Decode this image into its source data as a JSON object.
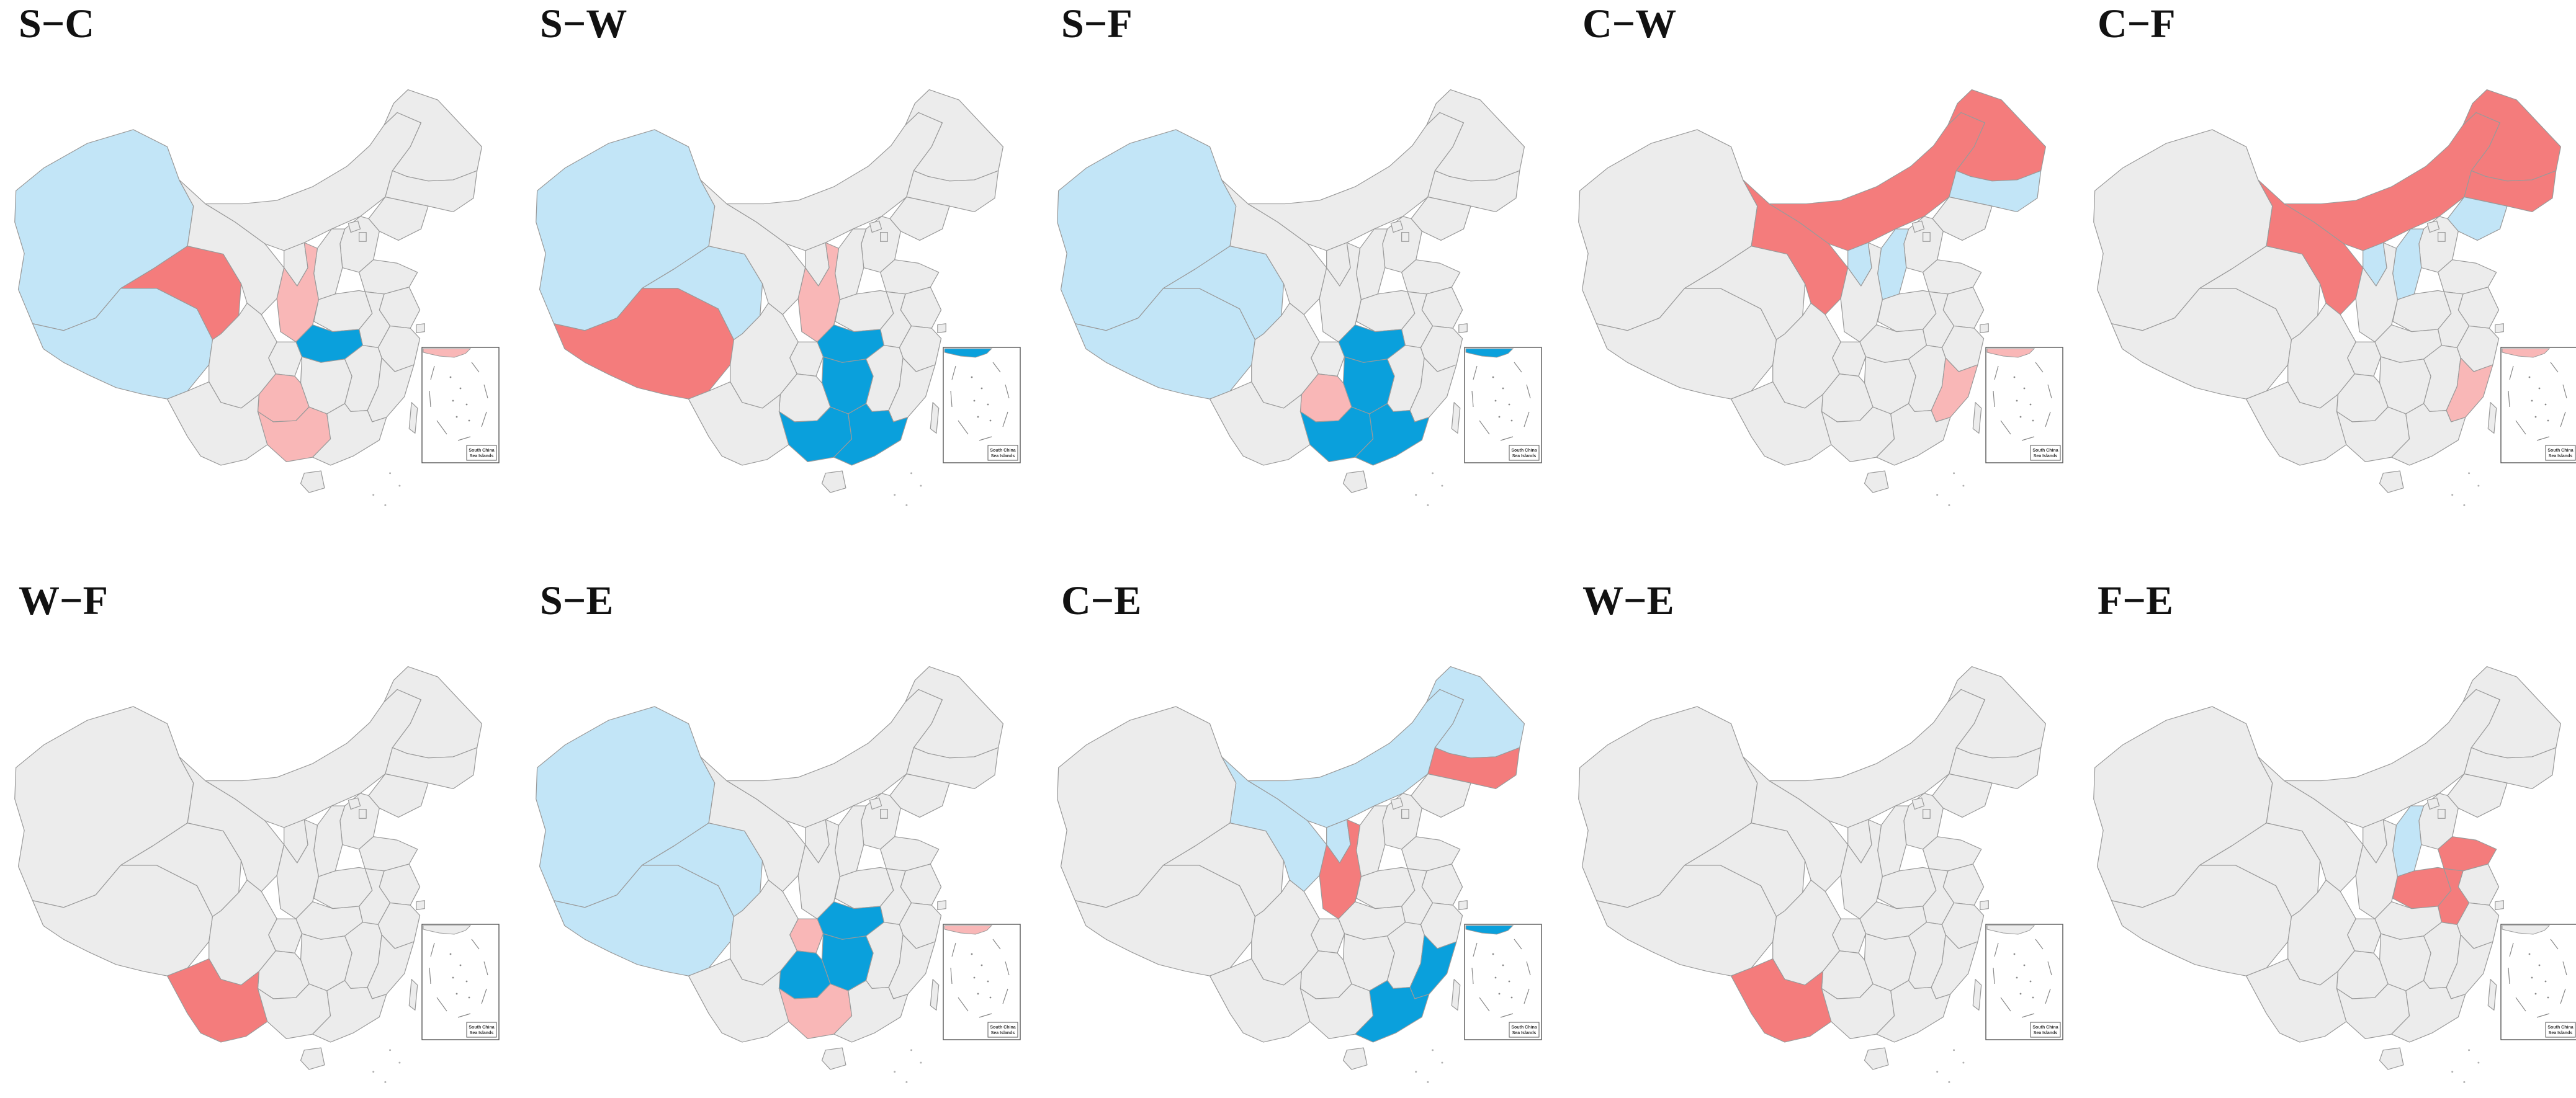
{
  "colors": {
    "neutral": "#ececec",
    "border": "#9a9a9a",
    "strong_red": "#f47c7c",
    "light_red": "#f9b7b7",
    "strong_blue": "#0aa0dc",
    "light_blue": "#c2e5f7",
    "inset_frame": "#555555"
  },
  "inset": {
    "label_line1": "South China",
    "label_line2": "Sea Islands"
  },
  "panels": [
    {
      "title": "S−C",
      "regions": {
        "xinjiang": "light_blue",
        "xizang": "light_blue",
        "qinghai": "strong_red",
        "shaanxi": "light_red",
        "hubei": "strong_blue",
        "guizhou": "light_red",
        "guangxi": "light_red",
        "inset_top": "light_red"
      }
    },
    {
      "title": "S−W",
      "regions": {
        "xinjiang": "light_blue",
        "qinghai": "light_blue",
        "xizang": "strong_red",
        "shaanxi": "light_red",
        "hubei": "strong_blue",
        "hunan": "strong_blue",
        "guangxi": "strong_blue",
        "guangdong": "strong_blue",
        "inset_top": "strong_blue"
      }
    },
    {
      "title": "S−F",
      "regions": {
        "xinjiang": "light_blue",
        "xizang": "light_blue",
        "qinghai": "light_blue",
        "guizhou": "light_red",
        "hubei": "strong_blue",
        "hunan": "strong_blue",
        "guangxi": "strong_blue",
        "guangdong": "strong_blue",
        "inset_top": "strong_blue"
      }
    },
    {
      "title": "C−W",
      "regions": {
        "heilongjiang": "strong_red",
        "jilin": "light_blue",
        "neimenggu": "strong_red",
        "gansu": "strong_red",
        "ningxia": "light_blue",
        "shanxi": "light_blue",
        "fujian": "light_red",
        "inset_top": "light_red"
      }
    },
    {
      "title": "C−F",
      "regions": {
        "heilongjiang": "strong_red",
        "jilin": "strong_red",
        "liaoning": "light_blue",
        "neimenggu": "strong_red",
        "gansu": "strong_red",
        "ningxia": "light_blue",
        "shanxi": "light_blue",
        "fujian": "light_red",
        "inset_top": "light_red"
      }
    },
    {
      "title": "W−F",
      "regions": {
        "yunnan": "strong_red"
      }
    },
    {
      "title": "S−E",
      "regions": {
        "xinjiang": "light_blue",
        "xizang": "light_blue",
        "qinghai": "light_blue",
        "chongqing": "light_red",
        "hubei": "strong_blue",
        "hunan": "strong_blue",
        "guizhou": "strong_blue",
        "guangxi": "light_red",
        "inset_top": "light_red"
      }
    },
    {
      "title": "C−E",
      "regions": {
        "heilongjiang": "light_blue",
        "jilin": "strong_red",
        "neimenggu": "light_blue",
        "gansu": "light_blue",
        "ningxia": "light_blue",
        "shaanxi": "strong_red",
        "fujian": "strong_blue",
        "guangdong": "strong_blue",
        "inset_top": "strong_blue"
      }
    },
    {
      "title": "W−E",
      "regions": {
        "yunnan": "strong_red"
      }
    },
    {
      "title": "F−E",
      "regions": {
        "shanxi": "light_blue",
        "shandong": "strong_red",
        "henan": "strong_red",
        "anhui": "strong_red"
      }
    }
  ]
}
